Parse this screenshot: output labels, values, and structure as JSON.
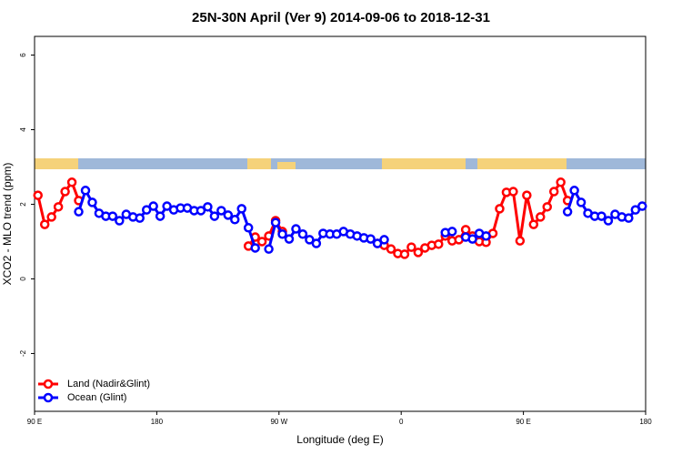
{
  "chart_data": {
    "type": "line",
    "title": "25N-30N April (Ver 9)   2014-09-06 to 2018-12-31",
    "x_label": "Longitude (deg E)",
    "y_label": "XCO2 - MLO trend (ppm)",
    "x": [
      92.5,
      97.5,
      102.5,
      107.5,
      112.5,
      117.5,
      122.5,
      127.5,
      132.5,
      137.5,
      142.5,
      147.5,
      152.5,
      157.5,
      162.5,
      167.5,
      172.5,
      177.5,
      182.5,
      187.5,
      192.5,
      197.5,
      202.5,
      207.5,
      212.5,
      217.5,
      222.5,
      227.5,
      232.5,
      237.5,
      242.5,
      247.5,
      252.5,
      257.5,
      262.5,
      267.5,
      272.5,
      277.5,
      282.5,
      287.5,
      292.5,
      297.5,
      302.5,
      307.5,
      312.5,
      317.5,
      322.5,
      327.5,
      332.5,
      337.5,
      342.5,
      347.5,
      352.5,
      357.5,
      362.5,
      367.5,
      372.5,
      377.5,
      382.5,
      387.5,
      392.5,
      397.5,
      402.5,
      407.5,
      412.5,
      417.5,
      422.5,
      427.5,
      432.5,
      437.5,
      442.5,
      447.5,
      452.5,
      457.5,
      462.5,
      467.5,
      472.5,
      477.5,
      482.5,
      487.5,
      492.5,
      497.5,
      502.5,
      507.5,
      512.5,
      517.5,
      522.5,
      527.5,
      532.5,
      537.5
    ],
    "series": [
      {
        "name": "Land (Nadir&Glint)",
        "color": "#ff0000",
        "values": [
          2.24,
          1.46,
          1.66,
          1.93,
          2.34,
          2.59,
          2.1,
          null,
          null,
          null,
          null,
          null,
          null,
          null,
          null,
          null,
          null,
          null,
          null,
          null,
          null,
          null,
          null,
          null,
          null,
          null,
          null,
          null,
          null,
          null,
          null,
          0.88,
          1.12,
          1.0,
          1.15,
          1.56,
          1.27,
          null,
          null,
          null,
          null,
          null,
          null,
          null,
          null,
          null,
          null,
          null,
          null,
          null,
          0.95,
          0.9,
          0.8,
          0.68,
          0.66,
          0.85,
          0.71,
          0.83,
          0.9,
          0.93,
          1.15,
          1.02,
          1.05,
          1.32,
          1.15,
          1.0,
          0.98,
          1.22,
          1.88,
          2.32,
          2.34,
          1.02,
          2.24,
          1.46,
          1.66,
          1.93,
          2.34,
          2.59,
          2.1,
          null,
          null,
          null,
          null,
          null,
          null,
          null,
          null,
          null,
          null,
          null
        ]
      },
      {
        "name": "Ocean (Glint)",
        "color": "#0000ff",
        "values": [
          null,
          null,
          null,
          null,
          null,
          null,
          1.8,
          2.37,
          2.05,
          1.76,
          1.68,
          1.68,
          1.56,
          1.73,
          1.66,
          1.63,
          1.85,
          1.95,
          1.68,
          1.95,
          1.85,
          1.9,
          1.9,
          1.83,
          1.83,
          1.93,
          1.68,
          1.83,
          1.71,
          1.59,
          1.88,
          1.37,
          0.83,
          null,
          0.8,
          1.51,
          1.2,
          1.07,
          1.34,
          1.2,
          1.05,
          0.95,
          1.22,
          1.2,
          1.2,
          1.27,
          1.2,
          1.15,
          1.1,
          1.07,
          0.95,
          1.05,
          null,
          null,
          null,
          null,
          null,
          null,
          null,
          null,
          1.24,
          1.27,
          null,
          1.12,
          1.07,
          1.22,
          1.15,
          null,
          null,
          null,
          null,
          null,
          null,
          null,
          null,
          null,
          null,
          null,
          1.8,
          2.37,
          2.05,
          1.76,
          1.68,
          1.68,
          1.56,
          1.73,
          1.66,
          1.63,
          1.85,
          1.95
        ]
      }
    ],
    "xlim": [
      90,
      540
    ],
    "xticks": [
      {
        "value": 90,
        "label": "90 E"
      },
      180,
      {
        "value": 270,
        "label": "90 W"
      },
      {
        "value": 360,
        "label": "0"
      },
      {
        "value": 450,
        "label": "90 E"
      },
      {
        "value": 540,
        "label": "180"
      }
    ],
    "ylim": [
      -3.55,
      6.5
    ],
    "yticks": [
      -2,
      0,
      2,
      4,
      6
    ],
    "legend": "bottom-left"
  }
}
